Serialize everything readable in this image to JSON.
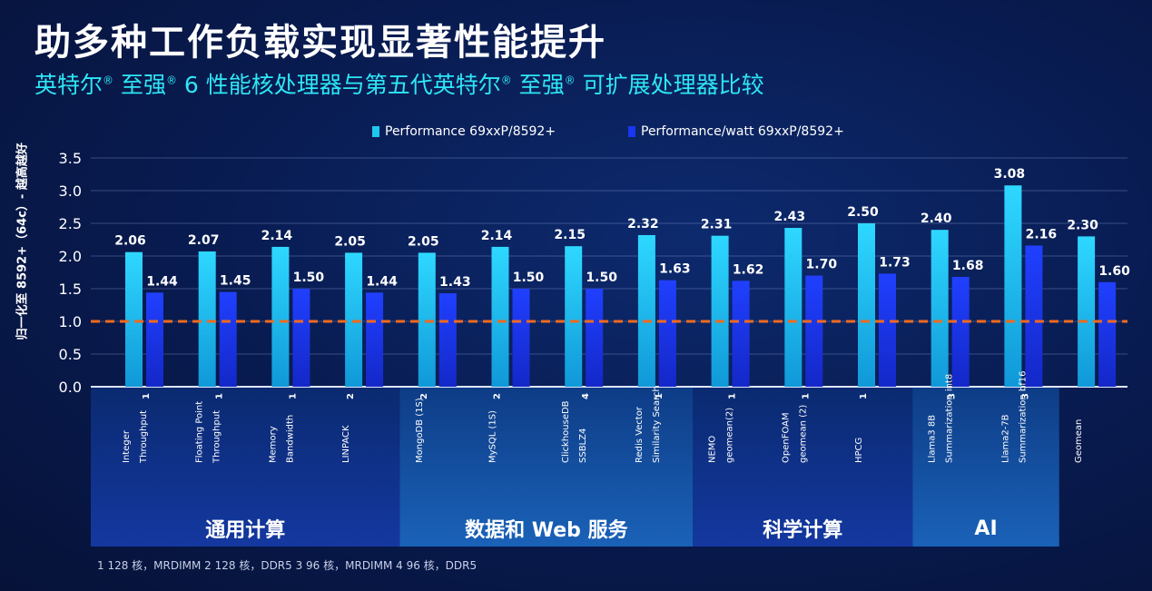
{
  "title": "助多种工作负载实现显著性能提升",
  "subtitle_parts": [
    "英特尔",
    "®",
    " 至强",
    "®",
    " 6 性能核处理器与第五代英特尔",
    "®",
    " 至强",
    "®",
    " 可扩展处理器比较"
  ],
  "footnote": "1 128 核，MRDIMM   2 128 核，DDR5   3 96 核，MRDIMM   4 96 核，DDR5",
  "colors": {
    "series1": "#1fc8f0",
    "series2": "#1a36f0",
    "baseline": "#f06a1e"
  },
  "chart_data": {
    "type": "bar",
    "title": "",
    "ylabel": "归一化至 8592+（64c）- 越高越好",
    "ylim": [
      0,
      3.5
    ],
    "yticks": [
      "0.0",
      "0.5",
      "1.0",
      "1.5",
      "2.0",
      "2.5",
      "3.0",
      "3.5"
    ],
    "grid": true,
    "baseline": 1.0,
    "legend_position": "top-center",
    "categories": [
      {
        "line1": "Integer",
        "line2": "Throughput",
        "sup": "1"
      },
      {
        "line1": "Floating Point",
        "line2": "Throughput",
        "sup": "1"
      },
      {
        "line1": "Memory",
        "line2": "Bandwidth",
        "sup": "1"
      },
      {
        "line1": "LINPACK",
        "line2": "",
        "sup": "2"
      },
      {
        "line1": "MongoDB (1S)",
        "line2": "",
        "sup": "2"
      },
      {
        "line1": "MySQL (1S)",
        "line2": "",
        "sup": "2"
      },
      {
        "line1": "ClickhouseDB",
        "line2": "SSBLZ4",
        "sup": "4"
      },
      {
        "line1": "Redis Vector",
        "line2": "Similarity Search",
        "sup": "1"
      },
      {
        "line1": "NEMO",
        "line2": "geomean(2)",
        "sup": "1"
      },
      {
        "line1": "OpenFOAM",
        "line2": "geomean (2)",
        "sup": "1"
      },
      {
        "line1": "HPCG",
        "line2": "",
        "sup": "1"
      },
      {
        "line1": "Llama3 8B",
        "line2": "Summarization int8",
        "sup": "3"
      },
      {
        "line1": "Llama2-7B",
        "line2": "Summarization bf16",
        "sup": "3"
      },
      {
        "line1": "Geomean",
        "line2": "",
        "sup": ""
      }
    ],
    "series": [
      {
        "name": "Performance 69xxP/8592+",
        "values": [
          2.06,
          2.07,
          2.14,
          2.05,
          2.05,
          2.14,
          2.15,
          2.32,
          2.31,
          2.43,
          2.5,
          2.4,
          3.08,
          2.3
        ],
        "labels": [
          "2.06",
          "2.07",
          "2.14",
          "2.05",
          "2.05",
          "2.14",
          "2.15",
          "2.32",
          "2.31",
          "2.43",
          "2.50",
          "2.40",
          "3.08",
          "2.30"
        ]
      },
      {
        "name": "Performance/watt 69xxP/8592+",
        "values": [
          1.44,
          1.45,
          1.5,
          1.44,
          1.43,
          1.5,
          1.5,
          1.63,
          1.62,
          1.7,
          1.73,
          1.68,
          2.16,
          1.6
        ],
        "labels": [
          "1.44",
          "1.45",
          "1.50",
          "1.44",
          "1.43",
          "1.50",
          "1.50",
          "1.63",
          "1.62",
          "1.70",
          "1.73",
          "1.68",
          "2.16",
          "1.60"
        ]
      }
    ],
    "groups": [
      {
        "label": "通用计算",
        "start": 0,
        "end": 3
      },
      {
        "label": "数据和 Web 服务",
        "start": 4,
        "end": 7
      },
      {
        "label": "科学计算",
        "start": 8,
        "end": 10
      },
      {
        "label": "AI",
        "start": 11,
        "end": 12
      },
      {
        "label": "",
        "start": 13,
        "end": 13
      }
    ]
  }
}
